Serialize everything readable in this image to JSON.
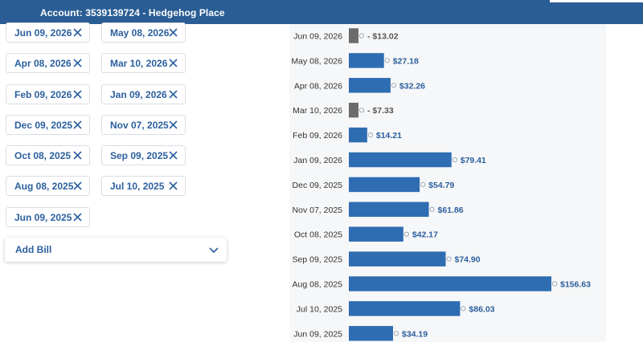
{
  "header": {
    "account_title": "Account: 3539139724 - Hedgehog Place"
  },
  "bill_chips": [
    {
      "label": "Jun 09, 2026"
    },
    {
      "label": "May 08, 2026"
    },
    {
      "label": "Apr 08, 2026"
    },
    {
      "label": "Mar 10, 2026"
    },
    {
      "label": "Feb 09, 2026"
    },
    {
      "label": "Jan 09, 2026"
    },
    {
      "label": "Dec 09, 2025"
    },
    {
      "label": "Nov 07, 2025"
    },
    {
      "label": "Oct 08, 2025"
    },
    {
      "label": "Sep 09, 2025"
    },
    {
      "label": "Aug 08, 2025"
    },
    {
      "label": "Jul 10, 2025"
    },
    {
      "label": "Jun 09, 2025"
    }
  ],
  "add_bill": {
    "label": "Add Bill",
    "icon": "chevron-down-icon"
  },
  "colors": {
    "header_bg": "#2a5d94",
    "positive_bar": "#2f6db2",
    "negative_bar": "#6b6b6b",
    "positive_label": "#2b5f9e",
    "negative_label": "#555555"
  },
  "chart_data": {
    "type": "bar",
    "orientation": "horizontal",
    "categories": [
      "Jun 09, 2026",
      "May 08, 2026",
      "Apr 08, 2026",
      "Mar 10, 2026",
      "Feb 09, 2026",
      "Jan 09, 2026",
      "Dec 09, 2025",
      "Nov 07, 2025",
      "Oct 08, 2025",
      "Sep 09, 2025",
      "Aug 08, 2025",
      "Jul 10, 2025",
      "Jun 09, 2025"
    ],
    "values": [
      -13.02,
      27.18,
      32.26,
      -7.33,
      14.21,
      79.41,
      54.79,
      61.86,
      42.17,
      74.9,
      156.63,
      86.03,
      34.19
    ],
    "data_labels": [
      "- $13.02",
      "$27.18",
      "$32.26",
      "- $7.33",
      "$14.21",
      "$79.41",
      "$54.79",
      "$61.86",
      "$42.17",
      "$74.90",
      "$156.63",
      "$86.03",
      "$34.19"
    ]
  }
}
